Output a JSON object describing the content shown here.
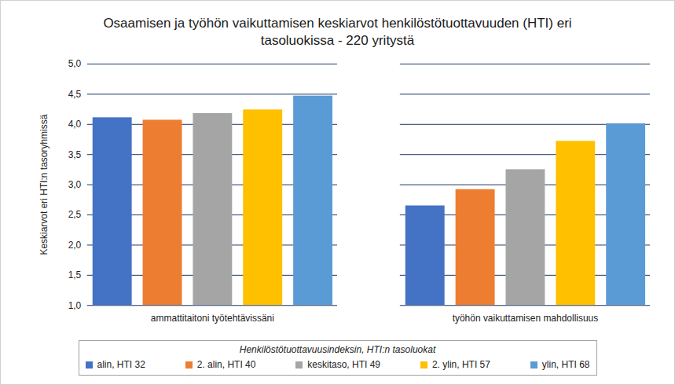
{
  "chart_data": {
    "type": "bar",
    "title": "Osaamisen ja työhön vaikuttamisen keskiarvot henkilöstötuottavuuden (HTI) eri tasoluokissa - 220 yritystä",
    "y_label": "Keskiarvot eri HTI:n tasoryhmissä",
    "legend_title": "Henkilöstötuottavuusindeksin, HTI:n tasoluokat",
    "categories": [
      "ammattitaitoni työtehtävissäni",
      "työhön vaikuttamisen mahdollisuus"
    ],
    "series": [
      {
        "name": "alin, HTI 32",
        "color": "#4472c4",
        "values": [
          4.11,
          2.65
        ]
      },
      {
        "name": "2. alin, HTI 40",
        "color": "#ed7d31",
        "values": [
          4.07,
          2.92
        ]
      },
      {
        "name": "keskitaso, HTI 49",
        "color": "#a5a5a5",
        "values": [
          4.18,
          3.25
        ]
      },
      {
        "name": "2. ylin, HTI 57",
        "color": "#ffc000",
        "values": [
          4.24,
          3.72
        ]
      },
      {
        "name": "ylin, HTI 68",
        "color": "#5b9bd5",
        "values": [
          4.47,
          4.01
        ]
      }
    ],
    "ylim": [
      1.0,
      5.0
    ],
    "yticks": [
      {
        "value": 1.0,
        "label": "1,0"
      },
      {
        "value": 1.5,
        "label": "1,5"
      },
      {
        "value": 2.0,
        "label": "2,0"
      },
      {
        "value": 2.5,
        "label": "2,5"
      },
      {
        "value": 3.0,
        "label": "3,0"
      },
      {
        "value": 3.5,
        "label": "3,5"
      },
      {
        "value": 4.0,
        "label": "4,0"
      },
      {
        "value": 4.5,
        "label": "4,5"
      },
      {
        "value": 5.0,
        "label": "5,0"
      }
    ],
    "grid": true,
    "legend": "bottom"
  }
}
